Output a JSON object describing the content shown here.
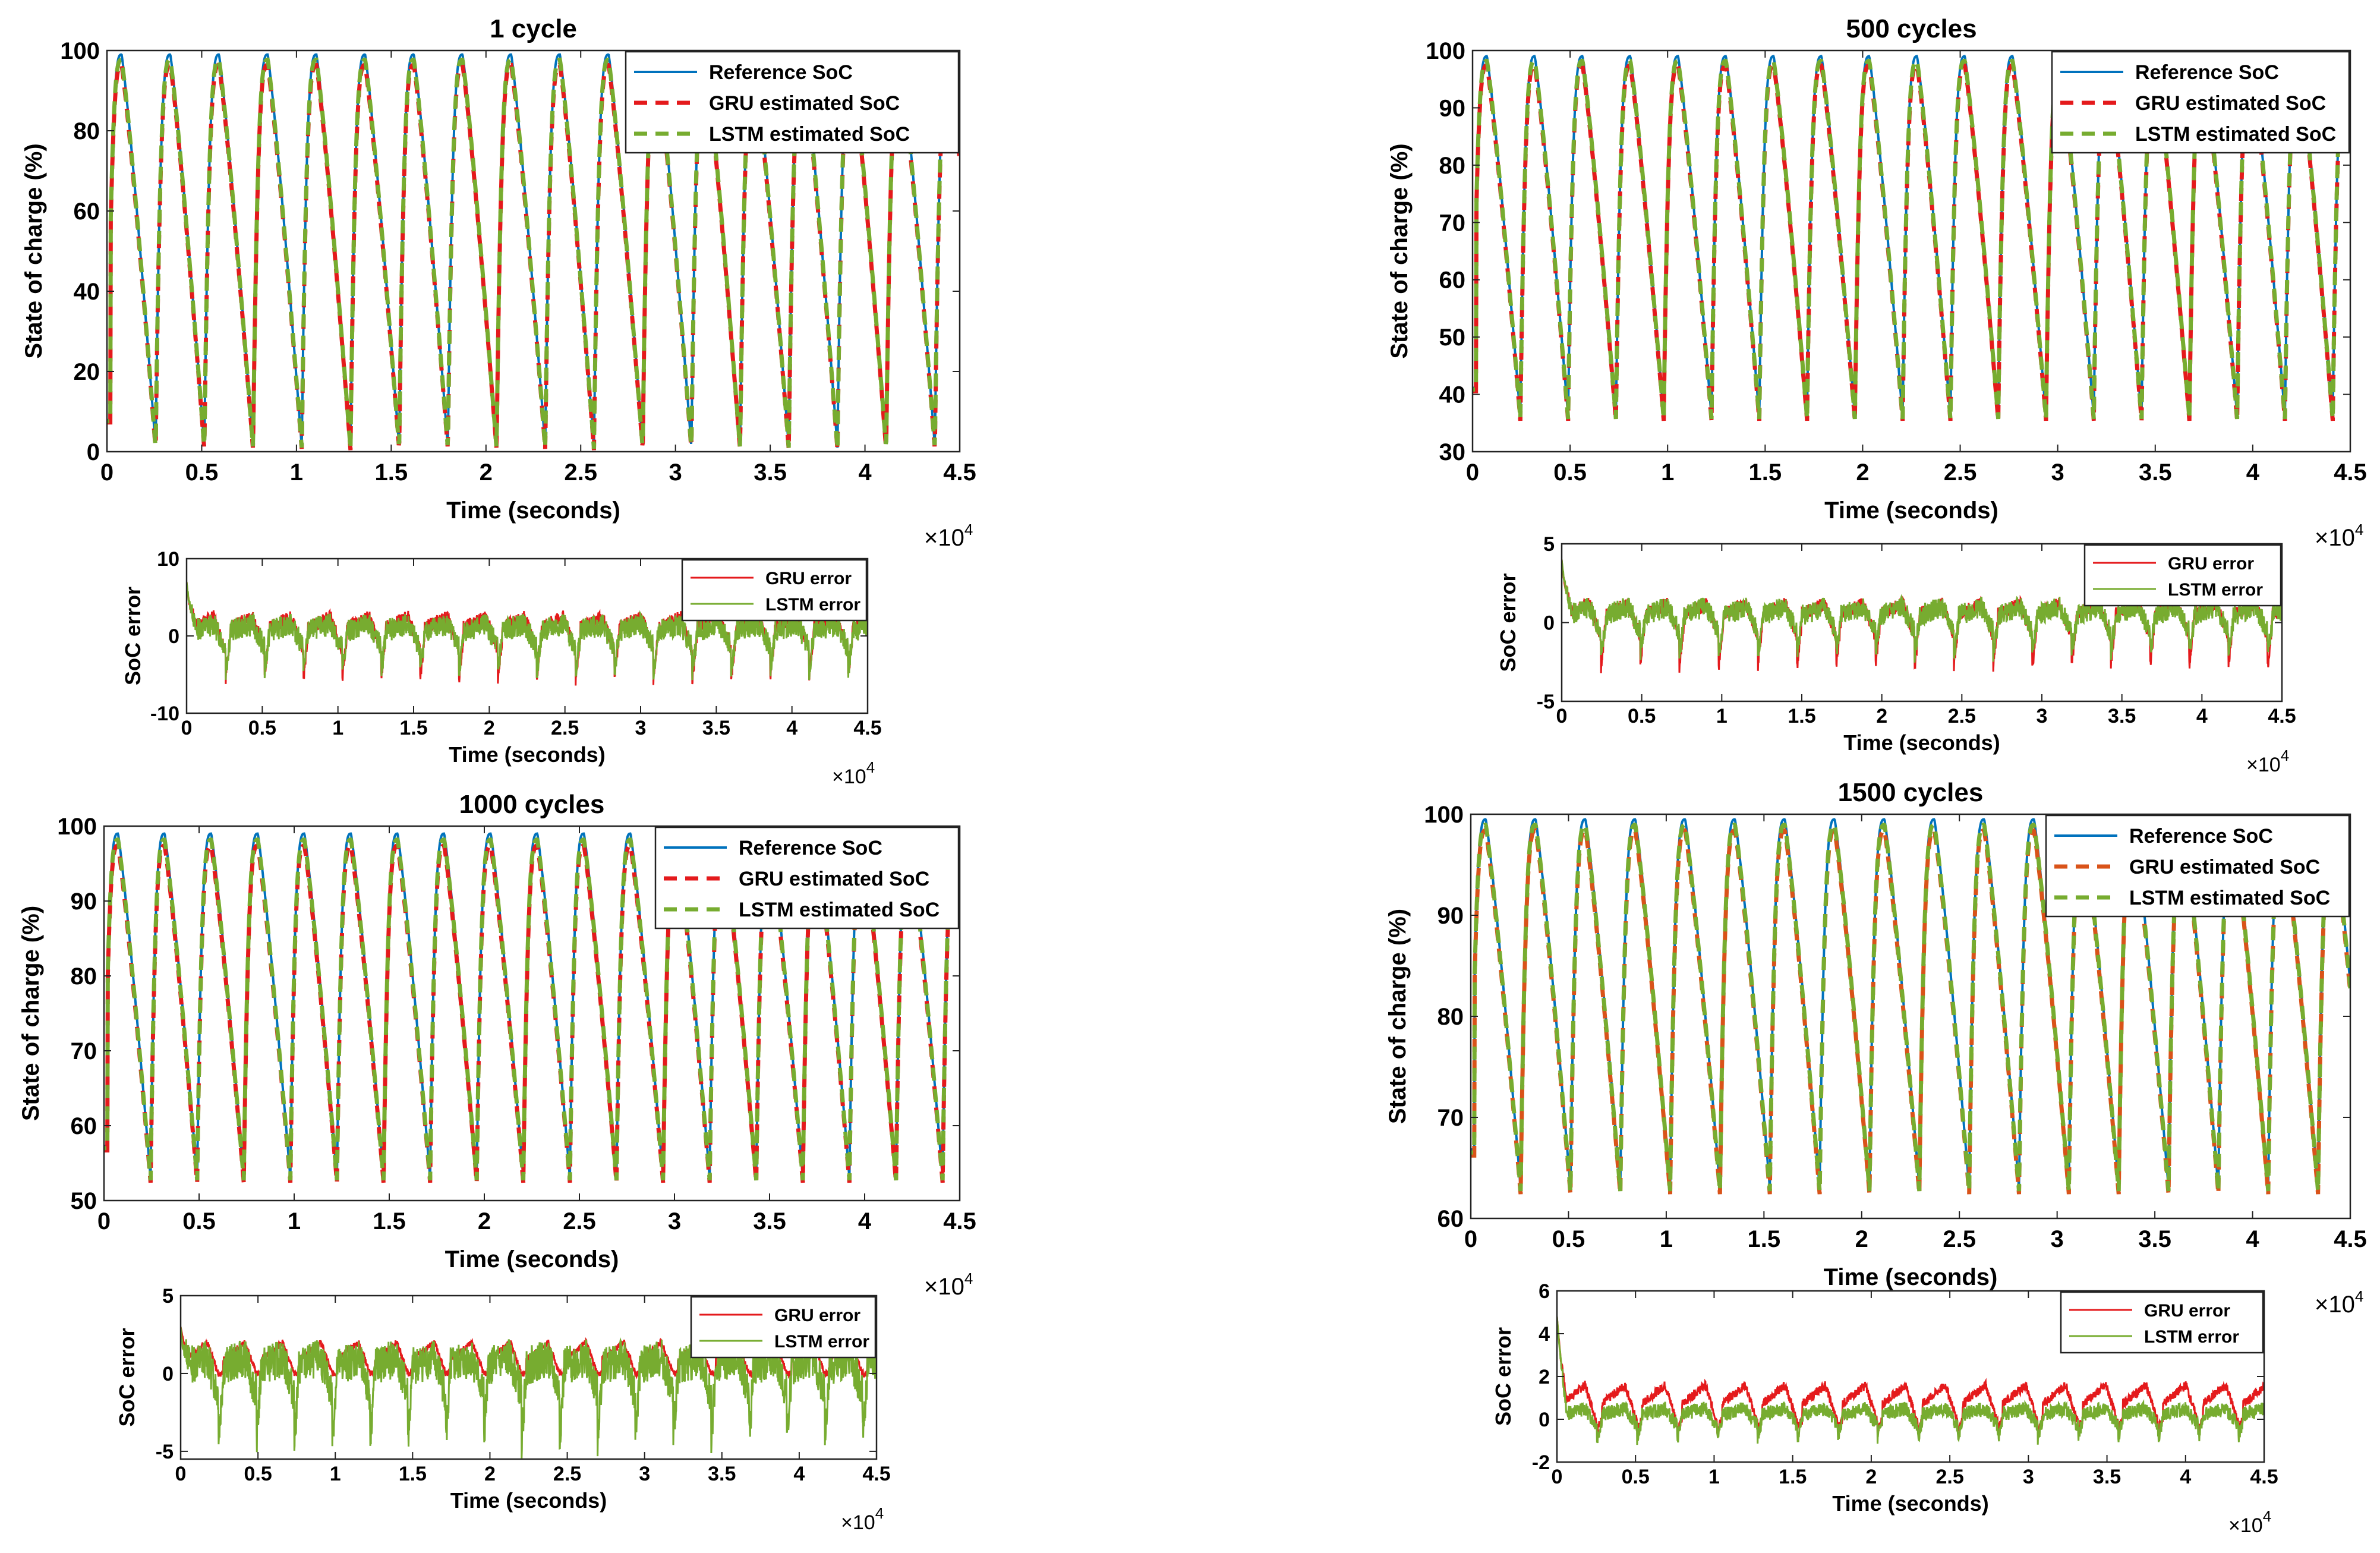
{
  "chart_data": [
    {
      "type": "line",
      "title": "1 cycle",
      "xlabel": "Time (seconds)",
      "ylabel": "State of charge (%)",
      "x_multiplier": "×10",
      "x_multiplier_exp": "4",
      "xlim": [
        0,
        4.5
      ],
      "ylim": [
        0,
        100
      ],
      "xticks": [
        0,
        0.5,
        1,
        1.5,
        2,
        2.5,
        3,
        3.5,
        4,
        4.5
      ],
      "xtick_labels": [
        "0",
        "0.5",
        "1",
        "1.5",
        "2",
        "2.5",
        "3",
        "3.5",
        "4",
        "4.5"
      ],
      "yticks": [
        0,
        20,
        40,
        60,
        80,
        100
      ],
      "ytick_labels": [
        "0",
        "20",
        "40",
        "60",
        "80",
        "100"
      ],
      "period": 0.257,
      "soc_min": 1,
      "soc_max": 99,
      "gru_peak_drop": 2,
      "series": [
        {
          "name": "Reference SoC",
          "color": "#0072BD",
          "dash": "solid"
        },
        {
          "name": "GRU estimated SoC",
          "color": "#E41A1C",
          "dash": "dashed"
        },
        {
          "name": "LSTM estimated SoC",
          "color": "#77AC30",
          "dash": "dashed"
        }
      ]
    },
    {
      "type": "line",
      "title": "",
      "xlabel": "Time (seconds)",
      "ylabel": "SoC error",
      "x_multiplier": "×10",
      "x_multiplier_exp": "4",
      "xlim": [
        0,
        4.5
      ],
      "ylim": [
        -10,
        10
      ],
      "xticks": [
        0,
        0.5,
        1,
        1.5,
        2,
        2.5,
        3,
        3.5,
        4,
        4.5
      ],
      "xtick_labels": [
        "0",
        "0.5",
        "1",
        "1.5",
        "2",
        "2.5",
        "3",
        "3.5",
        "4",
        "4.5"
      ],
      "yticks": [
        -10,
        0,
        10
      ],
      "ytick_labels": [
        "-10",
        "0",
        "10"
      ],
      "period": 0.257,
      "initial_spike": 7,
      "gru_high": 2.5,
      "gru_low": -6,
      "lstm_high": 1.5,
      "lstm_low": -5,
      "series": [
        {
          "name": "GRU error",
          "color": "#E41A1C",
          "dash": "solid"
        },
        {
          "name": "LSTM error",
          "color": "#77AC30",
          "dash": "solid"
        }
      ]
    },
    {
      "type": "line",
      "title": "500 cycles",
      "xlabel": "Time (seconds)",
      "ylabel": "State of charge (%)",
      "x_multiplier": "×10",
      "x_multiplier_exp": "4",
      "xlim": [
        0,
        4.5
      ],
      "ylim": [
        30,
        100
      ],
      "xticks": [
        0,
        0.5,
        1,
        1.5,
        2,
        2.5,
        3,
        3.5,
        4,
        4.5
      ],
      "xtick_labels": [
        "0",
        "0.5",
        "1",
        "1.5",
        "2",
        "2.5",
        "3",
        "3.5",
        "4",
        "4.5"
      ],
      "yticks": [
        30,
        40,
        50,
        60,
        70,
        80,
        90,
        100
      ],
      "ytick_labels": [
        "30",
        "40",
        "50",
        "60",
        "70",
        "80",
        "90",
        "100"
      ],
      "period": 0.245,
      "soc_min": 36,
      "soc_max": 99,
      "gru_peak_drop": 1,
      "series": [
        {
          "name": "Reference SoC",
          "color": "#0072BD",
          "dash": "solid"
        },
        {
          "name": "GRU estimated SoC",
          "color": "#E41A1C",
          "dash": "dashed"
        },
        {
          "name": "LSTM estimated SoC",
          "color": "#77AC30",
          "dash": "dashed"
        }
      ]
    },
    {
      "type": "line",
      "title": "",
      "xlabel": "Time (seconds)",
      "ylabel": "SoC error",
      "x_multiplier": "×10",
      "x_multiplier_exp": "4",
      "xlim": [
        0,
        4.5
      ],
      "ylim": [
        -5,
        5
      ],
      "xticks": [
        0,
        0.5,
        1,
        1.5,
        2,
        2.5,
        3,
        3.5,
        4,
        4.5
      ],
      "xtick_labels": [
        "0",
        "0.5",
        "1",
        "1.5",
        "2",
        "2.5",
        "3",
        "3.5",
        "4",
        "4.5"
      ],
      "yticks": [
        -5,
        0,
        5
      ],
      "ytick_labels": [
        "-5",
        "0",
        "5"
      ],
      "period": 0.245,
      "initial_spike": 4,
      "gru_high": 1.2,
      "gru_low": -3,
      "lstm_high": 1,
      "lstm_low": -2,
      "series": [
        {
          "name": "GRU error",
          "color": "#E41A1C",
          "dash": "solid"
        },
        {
          "name": "LSTM error",
          "color": "#77AC30",
          "dash": "solid"
        }
      ]
    },
    {
      "type": "line",
      "title": "1000 cycles",
      "xlabel": "Time (seconds)",
      "ylabel": "State of charge (%)",
      "x_multiplier": "×10",
      "x_multiplier_exp": "4",
      "xlim": [
        0,
        4.5
      ],
      "ylim": [
        50,
        100
      ],
      "xticks": [
        0,
        0.5,
        1,
        1.5,
        2,
        2.5,
        3,
        3.5,
        4,
        4.5
      ],
      "xtick_labels": [
        "0",
        "0.5",
        "1",
        "1.5",
        "2",
        "2.5",
        "3",
        "3.5",
        "4",
        "4.5"
      ],
      "yticks": [
        50,
        60,
        70,
        80,
        90,
        100
      ],
      "ytick_labels": [
        "50",
        "60",
        "70",
        "80",
        "90",
        "100"
      ],
      "period": 0.245,
      "soc_min": 53,
      "soc_max": 99,
      "gru_peak_drop": 1,
      "series": [
        {
          "name": "Reference SoC",
          "color": "#0072BD",
          "dash": "solid"
        },
        {
          "name": "GRU estimated SoC",
          "color": "#E41A1C",
          "dash": "dashed"
        },
        {
          "name": "LSTM estimated SoC",
          "color": "#77AC30",
          "dash": "dashed"
        }
      ]
    },
    {
      "type": "line",
      "title": "",
      "xlabel": "Time (seconds)",
      "ylabel": "SoC error",
      "x_multiplier": "×10",
      "x_multiplier_exp": "4",
      "xlim": [
        0,
        4.5
      ],
      "ylim": [
        -5.5,
        5
      ],
      "xticks": [
        0,
        0.5,
        1,
        1.5,
        2,
        2.5,
        3,
        3.5,
        4,
        4.5
      ],
      "xtick_labels": [
        "0",
        "0.5",
        "1",
        "1.5",
        "2",
        "2.5",
        "3",
        "3.5",
        "4",
        "4.5"
      ],
      "yticks": [
        -5,
        0,
        5
      ],
      "ytick_labels": [
        "-5",
        "0",
        "5"
      ],
      "period": 0.245,
      "initial_spike": 3,
      "gru_high": 2,
      "gru_low": 0,
      "lstm_high": 1,
      "lstm_low": -4.5,
      "series": [
        {
          "name": "GRU error",
          "color": "#E41A1C",
          "dash": "solid"
        },
        {
          "name": "LSTM error",
          "color": "#77AC30",
          "dash": "solid"
        }
      ]
    },
    {
      "type": "line",
      "title": "1500 cycles",
      "xlabel": "Time (seconds)",
      "ylabel": "State of charge (%)",
      "x_multiplier": "×10",
      "x_multiplier_exp": "4",
      "xlim": [
        0,
        4.5
      ],
      "ylim": [
        60,
        100
      ],
      "xticks": [
        0,
        0.5,
        1,
        1.5,
        2,
        2.5,
        3,
        3.5,
        4,
        4.5
      ],
      "xtick_labels": [
        "0",
        "0.5",
        "1",
        "1.5",
        "2",
        "2.5",
        "3",
        "3.5",
        "4",
        "4.5"
      ],
      "yticks": [
        60,
        70,
        80,
        90,
        100
      ],
      "ytick_labels": [
        "60",
        "70",
        "80",
        "90",
        "100"
      ],
      "period": 0.255,
      "soc_min": 63,
      "soc_max": 99.5,
      "gru_peak_drop": 0.5,
      "series": [
        {
          "name": "Reference SoC",
          "color": "#0072BD",
          "dash": "solid"
        },
        {
          "name": "GRU estimated SoC",
          "color": "#D95319",
          "dash": "dashed"
        },
        {
          "name": "LSTM estimated SoC",
          "color": "#77AC30",
          "dash": "dashed"
        }
      ]
    },
    {
      "type": "line",
      "title": "",
      "xlabel": "Time (seconds)",
      "ylabel": "SoC error",
      "x_multiplier": "×10",
      "x_multiplier_exp": "4",
      "xlim": [
        0,
        4.5
      ],
      "ylim": [
        -2,
        6
      ],
      "xticks": [
        0,
        0.5,
        1,
        1.5,
        2,
        2.5,
        3,
        3.5,
        4,
        4.5
      ],
      "xtick_labels": [
        "0",
        "0.5",
        "1",
        "1.5",
        "2",
        "2.5",
        "3",
        "3.5",
        "4",
        "4.5"
      ],
      "yticks": [
        -2,
        0,
        2,
        4,
        6
      ],
      "ytick_labels": [
        "-2",
        "0",
        "2",
        "4",
        "6"
      ],
      "period": 0.255,
      "initial_spike": 4.8,
      "gru_high": 1.6,
      "gru_low": -0.5,
      "lstm_high": 0.5,
      "lstm_low": -1,
      "series": [
        {
          "name": "GRU error",
          "color": "#E41A1C",
          "dash": "solid"
        },
        {
          "name": "LSTM error",
          "color": "#77AC30",
          "dash": "solid"
        }
      ]
    }
  ]
}
